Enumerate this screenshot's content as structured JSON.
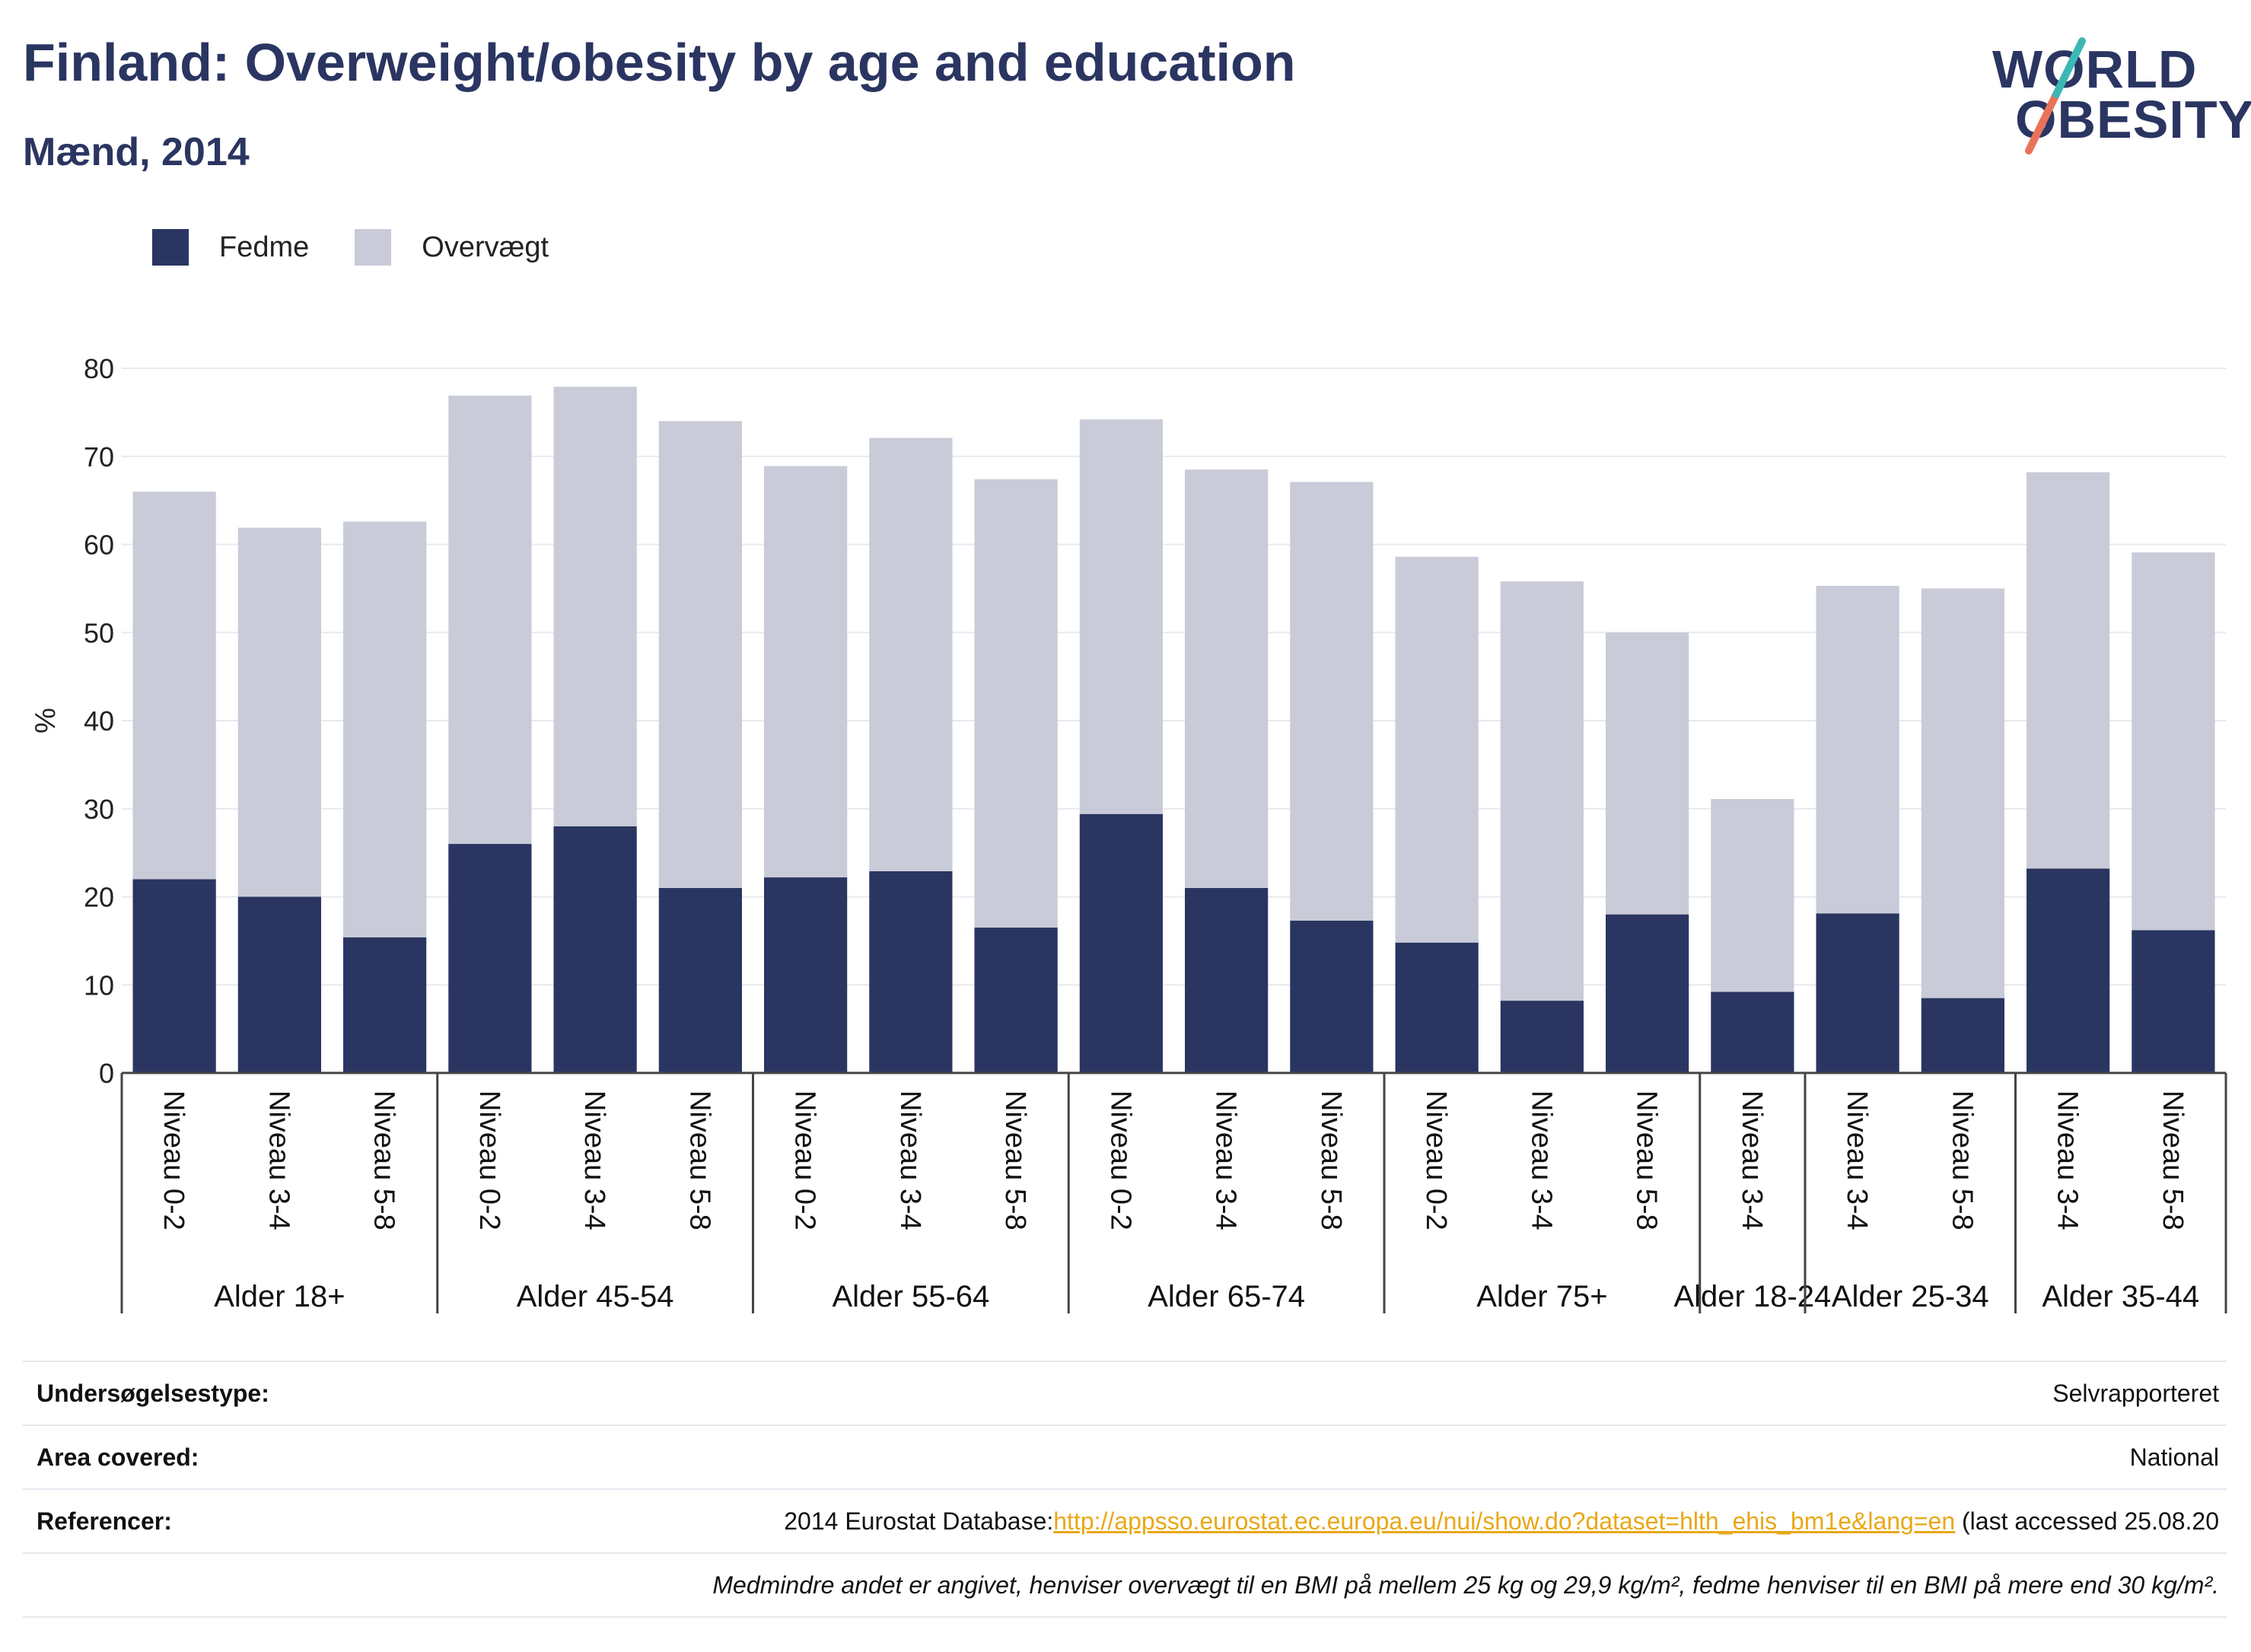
{
  "header": {
    "title": "Finland: Overweight/obesity by age and education",
    "subtitle": "Mænd, 2014"
  },
  "logo": {
    "line1": "WORLD",
    "line2": "OBESITY"
  },
  "legend": [
    {
      "label": "Fedme",
      "color": "#2a3561"
    },
    {
      "label": "Overvægt",
      "color": "#c9cbd8"
    }
  ],
  "chart_data": {
    "type": "bar",
    "stacked": true,
    "ylabel": "%",
    "ylim": [
      0,
      80
    ],
    "yticks": [
      0,
      10,
      20,
      30,
      40,
      50,
      60,
      70,
      80
    ],
    "grid": true,
    "legend_position": "top-left",
    "groups": [
      {
        "label": "Alder 18+",
        "categories": [
          "Niveau 0-2",
          "Niveau 3-4",
          "Niveau 5-8"
        ]
      },
      {
        "label": "Alder 45-54",
        "categories": [
          "Niveau 0-2",
          "Niveau 3-4",
          "Niveau 5-8"
        ]
      },
      {
        "label": "Alder 55-64",
        "categories": [
          "Niveau 0-2",
          "Niveau 3-4",
          "Niveau 5-8"
        ]
      },
      {
        "label": "Alder 65-74",
        "categories": [
          "Niveau 0-2",
          "Niveau 3-4",
          "Niveau 5-8"
        ]
      },
      {
        "label": "Alder 75+",
        "categories": [
          "Niveau 0-2",
          "Niveau 3-4",
          "Niveau 5-8"
        ]
      },
      {
        "label": "Alder 18-24",
        "categories": [
          "Niveau 3-4"
        ]
      },
      {
        "label": "Alder 25-34",
        "categories": [
          "Niveau 3-4",
          "Niveau 5-8"
        ]
      },
      {
        "label": "Alder 35-44",
        "categories": [
          "Niveau 3-4",
          "Niveau 5-8"
        ]
      }
    ],
    "series": [
      {
        "name": "Fedme",
        "color": "#2a3561",
        "values": [
          22,
          20,
          15.4,
          26,
          28,
          21,
          22.2,
          22.9,
          16.5,
          29.4,
          21,
          17.3,
          14.8,
          8.2,
          18,
          9.2,
          18.1,
          8.5,
          23.2,
          16.2
        ]
      },
      {
        "name": "Overvægt",
        "color": "#c9cbd8",
        "values": [
          44,
          41.9,
          47.2,
          50.9,
          49.9,
          53,
          46.7,
          49.2,
          50.9,
          44.8,
          47.5,
          49.8,
          43.8,
          47.6,
          32,
          21.9,
          37.2,
          46.5,
          45,
          42.9
        ]
      }
    ]
  },
  "info": {
    "survey_label": "Undersøgelsestype:",
    "survey_value": "Selvrapporteret",
    "area_label": "Area covered:",
    "area_value": "National",
    "ref_label": "Referencer:",
    "ref_prefix": "2014 Eurostat Database:",
    "ref_link": "http://appsso.eurostat.ec.europa.eu/nui/show.do?dataset=hlth_ehis_bm1e&lang=en",
    "ref_suffix": " (last accessed 25.08.20",
    "note": "Medmindre andet er angivet, henviser overvægt til en BMI på mellem 25 kg og 29,9 kg/m², fedme henviser til en BMI på mere end 30 kg/m²."
  }
}
